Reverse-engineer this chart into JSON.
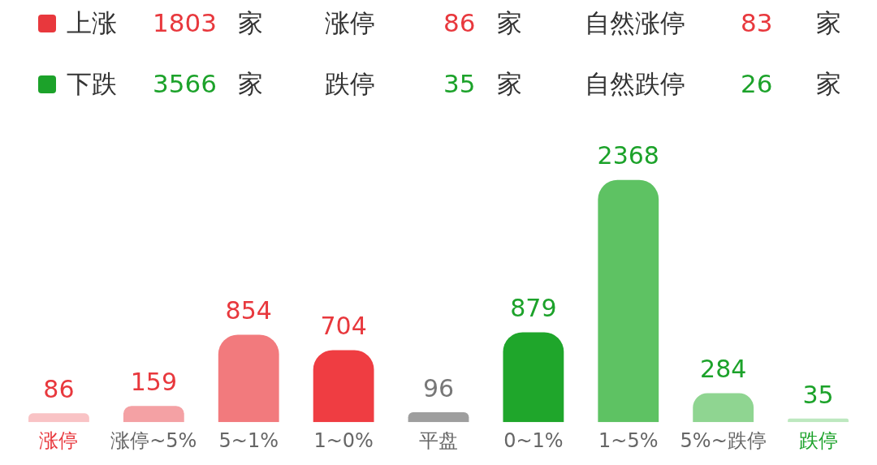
{
  "chart_data": {
    "type": "bar",
    "annotations": [
      "上涨",
      "1803",
      "家",
      "涨停",
      "86",
      "家",
      "自然涨停",
      "83",
      "家",
      "下跌",
      "3566",
      "家",
      "跌停",
      "35",
      "家",
      "自然跌停",
      "26",
      "家"
    ],
    "categories": [
      "涨停",
      "涨停~5%",
      "5~1%",
      "1~0%",
      "平盘",
      "0~1%",
      "1~5%",
      "5%~跌停",
      "跌停"
    ],
    "values": [
      86,
      159,
      854,
      704,
      96,
      879,
      2368,
      284,
      35
    ],
    "colors": [
      "#f9c3c5",
      "#f4a1a4",
      "#f27a7d",
      "#ef3d42",
      "#9e9e9e",
      "#1fa62b",
      "#5ec263",
      "#8fd591",
      "#bde8bf"
    ],
    "data_labels": true,
    "grid": false,
    "legend": false
  }
}
